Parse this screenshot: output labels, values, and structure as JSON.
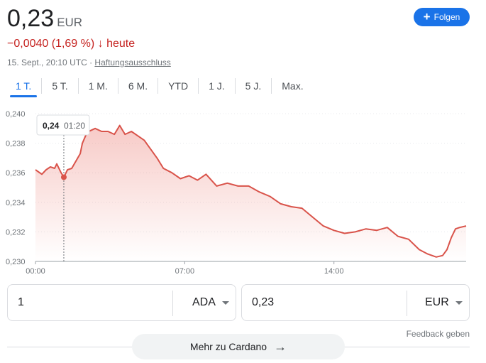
{
  "header": {
    "price": "0,23",
    "currency": "EUR",
    "change": "−0,0040 (1,69 %)",
    "change_arrow": "↓",
    "change_period": "heute",
    "timestamp": "15. Sept., 20:10 UTC · ",
    "disclaimer": "Haftungsausschluss",
    "follow_label": "Folgen",
    "follow_icon": "plus-icon"
  },
  "colors": {
    "accent": "#1a73e8",
    "negative": "#c5221f",
    "line": "#d9534a"
  },
  "tabs": [
    "1 T.",
    "5 T.",
    "1 M.",
    "6 M.",
    "YTD",
    "1 J.",
    "5 J.",
    "Max."
  ],
  "active_tab": "1 T.",
  "tooltip": {
    "value": "0,24",
    "time": "01:20"
  },
  "chart_data": {
    "type": "area",
    "ylim": [
      0.23,
      0.24
    ],
    "y_ticks": [
      "0,240",
      "0,238",
      "0,236",
      "0,234",
      "0,232",
      "0,230"
    ],
    "x_ticks": [
      "00:00",
      "07:00",
      "14:00"
    ],
    "grid": "horizontal dotted",
    "cursor_hour": 1.33,
    "series": [
      {
        "x": [
          0,
          0.3,
          0.5,
          0.7,
          0.9,
          1.0,
          1.2,
          1.33,
          1.5,
          1.7,
          1.9,
          2.1,
          2.2,
          2.35,
          2.5,
          2.8,
          3.1,
          3.4,
          3.7,
          3.95,
          4.2,
          4.5,
          4.8,
          5.1,
          5.4,
          5.7,
          6.0,
          6.4,
          6.8,
          7.2,
          7.6,
          8.0,
          8.5,
          9.0,
          9.5,
          10.0,
          10.5,
          11.0,
          11.5,
          12.0,
          12.5,
          13.0,
          13.5,
          14.0,
          14.5,
          15.0,
          15.5,
          16.0,
          16.5,
          17.0,
          17.5,
          18.0,
          18.4,
          18.8,
          19.1,
          19.3,
          19.5,
          19.7,
          19.9,
          20.2
        ],
        "y": [
          0.2362,
          0.2359,
          0.2362,
          0.2364,
          0.2363,
          0.2366,
          0.236,
          0.2357,
          0.2362,
          0.2363,
          0.2368,
          0.2373,
          0.238,
          0.2385,
          0.2388,
          0.239,
          0.2388,
          0.2388,
          0.2386,
          0.2392,
          0.2386,
          0.2388,
          0.2385,
          0.2382,
          0.2376,
          0.237,
          0.2363,
          0.236,
          0.2356,
          0.2358,
          0.2355,
          0.2359,
          0.2351,
          0.2353,
          0.2351,
          0.2351,
          0.2347,
          0.2344,
          0.2339,
          0.2337,
          0.2336,
          0.233,
          0.2324,
          0.2321,
          0.2319,
          0.232,
          0.2322,
          0.2321,
          0.2323,
          0.2317,
          0.2315,
          0.2308,
          0.2305,
          0.2303,
          0.2304,
          0.2308,
          0.2316,
          0.2322,
          0.2323,
          0.2324
        ]
      }
    ]
  },
  "converter": {
    "from_amount": "1",
    "from_unit": "ADA",
    "to_amount": "0,23",
    "to_unit": "EUR"
  },
  "footer": {
    "feedback": "Feedback geben",
    "more_label": "Mehr zu Cardano",
    "more_arrow": "→"
  }
}
